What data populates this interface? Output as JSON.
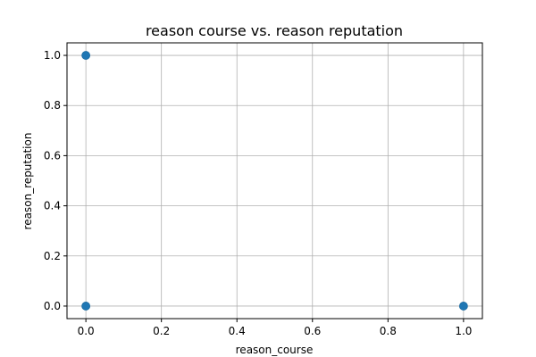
{
  "chart_data": {
    "type": "scatter",
    "title": "reason course vs. reason reputation",
    "xlabel": "reason_course",
    "ylabel": "reason_reputation",
    "xlim": [
      -0.05,
      1.05
    ],
    "ylim": [
      -0.05,
      1.05
    ],
    "xticks": [
      0.0,
      0.2,
      0.4,
      0.6,
      0.8,
      1.0
    ],
    "yticks": [
      0.0,
      0.2,
      0.4,
      0.6,
      0.8,
      1.0
    ],
    "xtick_labels": [
      "0.0",
      "0.2",
      "0.4",
      "0.6",
      "0.8",
      "1.0"
    ],
    "ytick_labels": [
      "0.0",
      "0.2",
      "0.4",
      "0.6",
      "0.8",
      "1.0"
    ],
    "grid": true,
    "legend": "none",
    "point_color": "#1f77b4",
    "points": [
      {
        "x": 0,
        "y": 1
      },
      {
        "x": 0,
        "y": 0
      },
      {
        "x": 1,
        "y": 0
      }
    ]
  }
}
